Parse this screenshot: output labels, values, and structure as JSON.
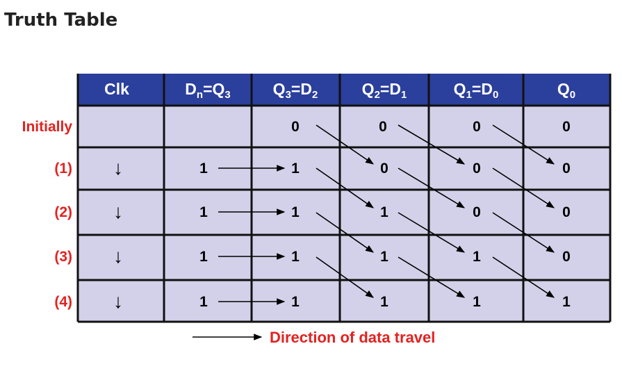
{
  "title": "Truth Table",
  "header": {
    "clk": "Clk",
    "col1": {
      "a": "D",
      "a_sub": "n",
      "b": "Q",
      "b_sub": "3"
    },
    "col2": {
      "a": "Q",
      "a_sub": "3",
      "b": "D",
      "b_sub": "2"
    },
    "col3": {
      "a": "Q",
      "a_sub": "2",
      "b": "D",
      "b_sub": "1"
    },
    "col4": {
      "a": "Q",
      "a_sub": "1",
      "b": "D",
      "b_sub": "0"
    },
    "col5": {
      "a": "Q",
      "a_sub": "0"
    }
  },
  "row_labels": [
    "Initially",
    "(1)",
    "(2)",
    "(3)",
    "(4)"
  ],
  "rows": [
    {
      "clk": "",
      "dn": "",
      "q3": "0",
      "q2": "0",
      "q1": "0",
      "q0": "0"
    },
    {
      "clk": "↓",
      "dn": "1",
      "q3": "1",
      "q2": "0",
      "q1": "0",
      "q0": "0"
    },
    {
      "clk": "↓",
      "dn": "1",
      "q3": "1",
      "q2": "1",
      "q1": "0",
      "q0": "0"
    },
    {
      "clk": "↓",
      "dn": "1",
      "q3": "1",
      "q2": "1",
      "q1": "1",
      "q0": "0"
    },
    {
      "clk": "↓",
      "dn": "1",
      "q3": "1",
      "q2": "1",
      "q1": "1",
      "q0": "1"
    }
  ],
  "caption": "Direction of data travel",
  "colors": {
    "header_bg": "#2b3f9c",
    "cell_bg": "#d3d1e9",
    "border": "#111111",
    "label": "#e32220"
  }
}
